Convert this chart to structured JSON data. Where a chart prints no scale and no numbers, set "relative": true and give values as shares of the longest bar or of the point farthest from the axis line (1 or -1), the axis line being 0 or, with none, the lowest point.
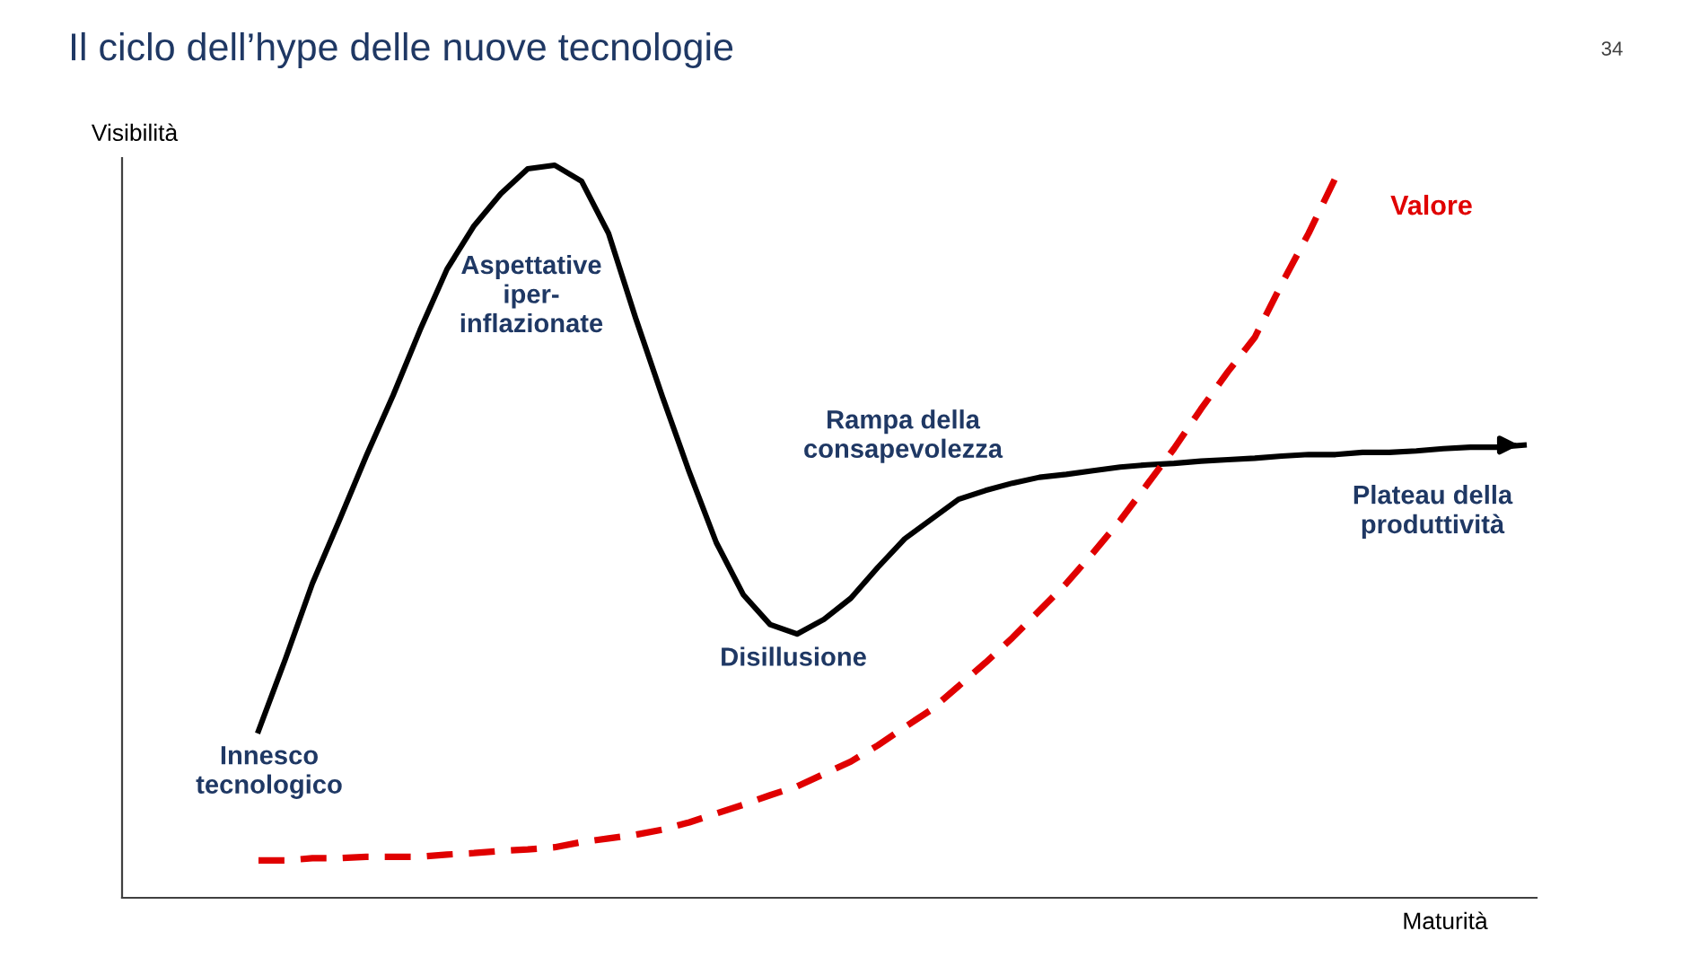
{
  "chart_data": {
    "type": "line",
    "relative": true,
    "title": "Il ciclo dell’hype delle nuove tecnologie",
    "xlabel": "Maturità",
    "ylabel": "Visibilità",
    "categories": [
      null,
      null,
      null,
      null,
      null,
      null,
      null,
      null,
      null,
      null,
      null,
      null,
      null,
      null,
      null,
      null,
      null,
      null,
      null,
      null,
      null,
      null,
      null,
      null,
      null,
      null,
      null,
      null,
      null,
      null,
      null,
      null,
      null,
      null,
      null,
      null,
      null,
      null,
      null,
      null,
      null,
      null,
      null,
      null,
      null,
      null,
      null,
      null
    ],
    "series": [
      {
        "color": "#000000",
        "line_style": "solid",
        "values": [
          0.228,
          0.326,
          0.429,
          0.515,
          0.603,
          0.686,
          0.775,
          0.858,
          0.917,
          0.961,
          0.995,
          1.0,
          0.978,
          0.907,
          0.792,
          0.684,
          0.581,
          0.485,
          0.414,
          0.373,
          0.36,
          0.38,
          0.409,
          0.451,
          0.49,
          0.517,
          0.544,
          0.556,
          0.566,
          0.574,
          0.578,
          0.583,
          0.588,
          0.591,
          0.593,
          0.596,
          0.598,
          0.6,
          0.603,
          0.605,
          0.605,
          0.608,
          0.608,
          0.61,
          0.613,
          0.615,
          0.615,
          0.618
        ]
      },
      {
        "name": "Valore",
        "color": "#e00000",
        "line_style": "dashed",
        "values": [
          0.051,
          0.051,
          0.054,
          0.054,
          0.056,
          0.056,
          0.056,
          0.059,
          0.061,
          0.064,
          0.066,
          0.069,
          0.076,
          0.081,
          0.086,
          0.093,
          0.103,
          0.115,
          0.127,
          0.14,
          0.152,
          0.169,
          0.186,
          0.208,
          0.233,
          0.257,
          0.289,
          0.321,
          0.355,
          0.392,
          0.429,
          0.471,
          0.515,
          0.564,
          0.613,
          0.667,
          0.718,
          0.765,
          0.838,
          0.907,
          0.983,
          null,
          null,
          null,
          null,
          null,
          null,
          null
        ]
      }
    ],
    "annotations": [
      "Aspettative\niper-\ninflazionate",
      "Innesco\ntecnologico",
      "Disillusione",
      "Rampa della\nconsapevolezza",
      "Plateau della\nproduttività",
      "34"
    ]
  }
}
